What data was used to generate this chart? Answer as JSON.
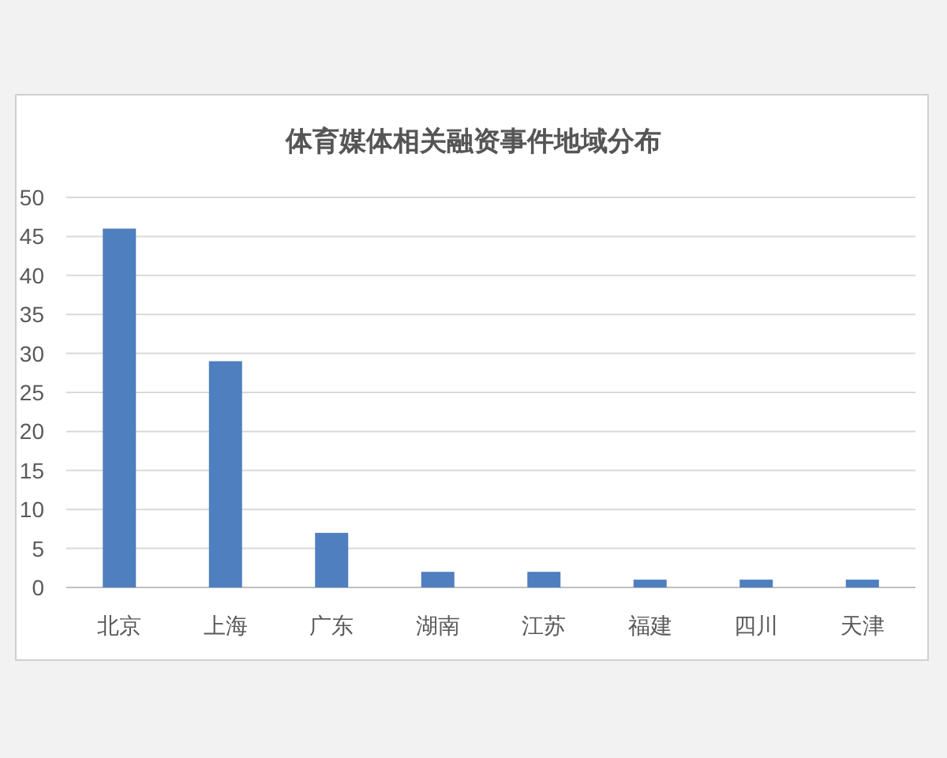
{
  "chart_data": {
    "type": "bar",
    "title": "体育媒体相关融资事件地域分布",
    "categories": [
      "北京",
      "上海",
      "广东",
      "湖南",
      "江苏",
      "福建",
      "四川",
      "天津"
    ],
    "values": [
      46,
      29,
      7,
      2,
      2,
      1,
      1,
      1
    ],
    "color": "#4f7fbf",
    "ylim": [
      0,
      50
    ],
    "yticks": [
      0,
      5,
      10,
      15,
      20,
      25,
      30,
      35,
      40,
      45,
      50
    ],
    "grid": "y"
  }
}
